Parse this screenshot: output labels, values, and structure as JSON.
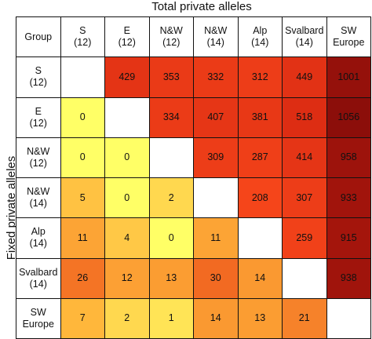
{
  "chart_data": {
    "type": "heatmap",
    "title": "Total private alleles",
    "ylabel": "Fixed private alleles",
    "corner_label": "Group",
    "columns": [
      {
        "name": "S",
        "n": "(12)"
      },
      {
        "name": "E",
        "n": "(12)"
      },
      {
        "name": "N&W",
        "n": "(12)"
      },
      {
        "name": "N&W",
        "n": "(14)"
      },
      {
        "name": "Alp",
        "n": "(14)"
      },
      {
        "name": "Svalbard",
        "n": "(14)"
      },
      {
        "name": "SW",
        "n": "Europe"
      }
    ],
    "rows": [
      {
        "name": "S",
        "n": "(12)"
      },
      {
        "name": "E",
        "n": "(12)"
      },
      {
        "name": "N&W",
        "n": "(12)"
      },
      {
        "name": "N&W",
        "n": "(14)"
      },
      {
        "name": "Alp",
        "n": "(14)"
      },
      {
        "name": "Svalbard",
        "n": "(14)"
      },
      {
        "name": "SW",
        "n": "Europe"
      }
    ],
    "values": [
      [
        null,
        429,
        353,
        332,
        312,
        449,
        1001
      ],
      [
        0,
        null,
        334,
        407,
        381,
        518,
        1056
      ],
      [
        0,
        0,
        null,
        309,
        287,
        414,
        958
      ],
      [
        5,
        0,
        2,
        null,
        208,
        307,
        933
      ],
      [
        11,
        4,
        0,
        11,
        null,
        259,
        915
      ],
      [
        26,
        12,
        13,
        30,
        14,
        null,
        938
      ],
      [
        7,
        2,
        1,
        14,
        13,
        21,
        null
      ]
    ],
    "color_scale_upper": {
      "low": "#f5451a",
      "mid": "#d42411",
      "high": "#8c0e0a"
    },
    "color_scale_lower": {
      "low": "#ffff66",
      "mid": "#ffb43a",
      "high": "#f26a22"
    }
  }
}
